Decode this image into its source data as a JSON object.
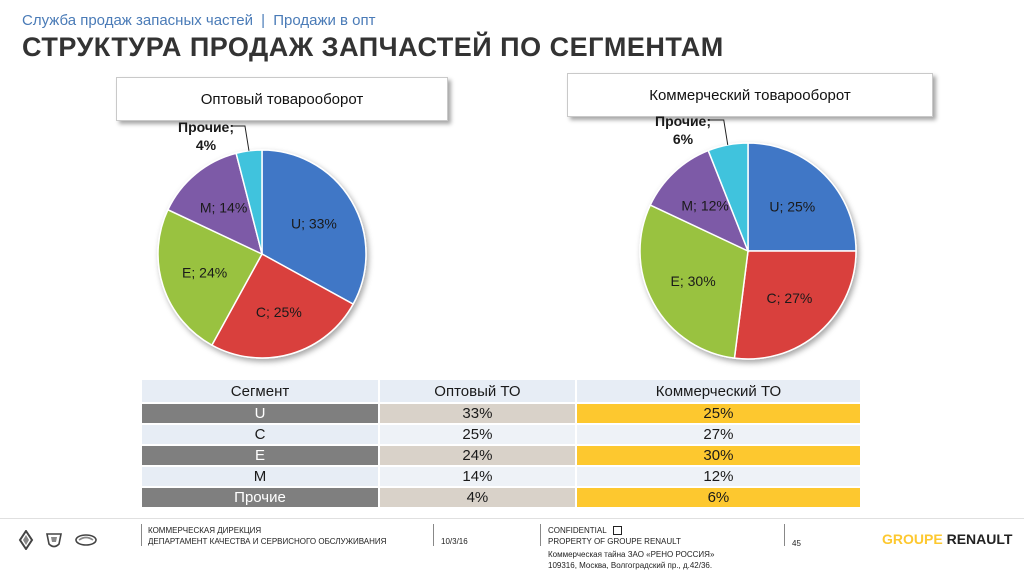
{
  "header": {
    "breadcrumb_1": "Служба продаж запасных частей",
    "breadcrumb_sep": "|",
    "breadcrumb_2": "Продажи в опт",
    "title": "СТРУКТУРА ПРОДАЖ ЗАПЧАСТЕЙ ПО СЕГМЕНТАМ"
  },
  "colors": {
    "U": "#3f77c6",
    "C": "#d9403c",
    "E": "#99c23f",
    "M": "#7d5aa7",
    "other": "#3fc3dd",
    "highlight": "#fdc82f"
  },
  "chart_data": [
    {
      "type": "pie",
      "title": "Оптовый товарооборот",
      "series": [
        {
          "label": "U; 33%",
          "category": "U",
          "value": 33
        },
        {
          "label": "C; 25%",
          "category": "C",
          "value": 25
        },
        {
          "label": "E; 24%",
          "category": "E",
          "value": 24
        },
        {
          "label": "M; 14%",
          "category": "M",
          "value": 14
        },
        {
          "label_line1": "Прочие;",
          "label_line2": "4%",
          "category": "other",
          "value": 4
        }
      ]
    },
    {
      "type": "pie",
      "title": "Коммерческий товарооборот",
      "series": [
        {
          "label": "U; 25%",
          "category": "U",
          "value": 25
        },
        {
          "label": "C; 27%",
          "category": "C",
          "value": 27
        },
        {
          "label": "E; 30%",
          "category": "E",
          "value": 30
        },
        {
          "label": "M; 12%",
          "category": "M",
          "value": 12
        },
        {
          "label_line1": "Прочие;",
          "label_line2": "6%",
          "category": "other",
          "value": 6
        }
      ]
    }
  ],
  "table": {
    "headers": [
      "Сегмент",
      "Оптовый ТО",
      "Коммерческий ТО"
    ],
    "rows": [
      {
        "segment": "U",
        "opt": "33%",
        "com": "25%"
      },
      {
        "segment": "C",
        "opt": "25%",
        "com": "27%"
      },
      {
        "segment": "E",
        "opt": "24%",
        "com": "30%"
      },
      {
        "segment": "M",
        "opt": "14%",
        "com": "12%"
      },
      {
        "segment": "Прочие",
        "opt": "4%",
        "com": "6%"
      }
    ]
  },
  "footer": {
    "dept_1": "КОММЕРЧЕСКАЯ ДИРЕКЦИЯ",
    "dept_2": "ДЕПАРТАМЕНТ КАЧЕСТВА И СЕРВИСНОГО ОБСЛУЖИВАНИЯ",
    "date": "10/3/16",
    "confidential": "CONFIDENTIAL",
    "property": "PROPERTY OF GROUPE RENAULT",
    "page": "45",
    "secret_1": "Коммерческая тайна ЗАО «РЕНО РОССИЯ»",
    "secret_2": "109316, Москва, Волгоградский пр., д.42/36.",
    "brand_1": "GROUPE",
    "brand_2": "RENAULT"
  }
}
